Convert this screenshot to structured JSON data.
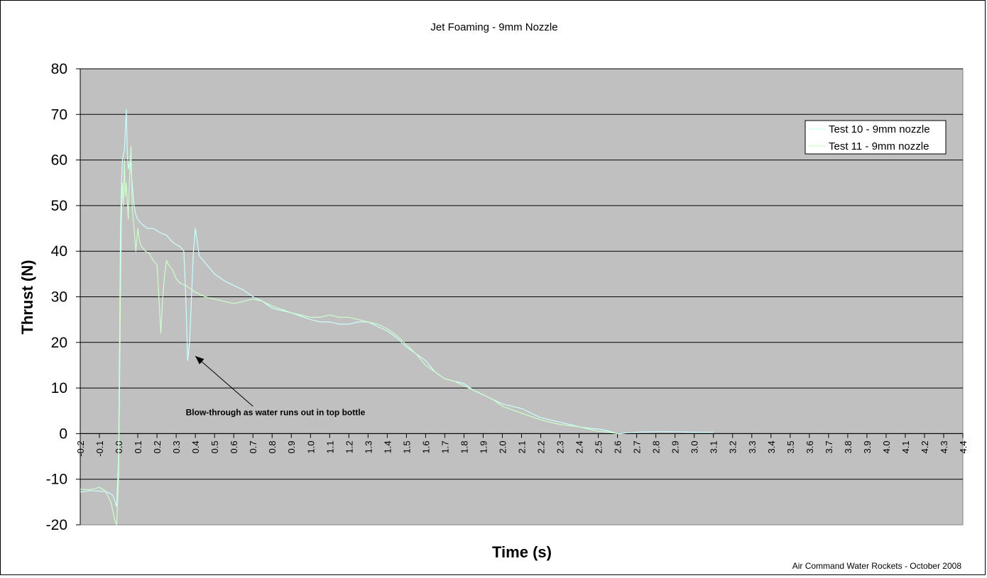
{
  "chart_data": {
    "type": "line",
    "title": "Jet Foaming - 9mm Nozzle",
    "xlabel": "Time (s)",
    "ylabel": "Thrust (N)",
    "xlim": [
      -0.2,
      4.4
    ],
    "ylim": [
      -20,
      80
    ],
    "x_tick_step": 0.1,
    "y_tick_step": 10,
    "y_ticks": [
      -20,
      -10,
      0,
      10,
      20,
      30,
      40,
      50,
      60,
      70,
      80
    ],
    "x_tick_labels": [
      "-0.2",
      "-0.1",
      "0.0",
      "0.1",
      "0.2",
      "0.3",
      "0.4",
      "0.5",
      "0.6",
      "0.7",
      "0.8",
      "0.9",
      "1.0",
      "1.1",
      "1.2",
      "1.3",
      "1.4",
      "1.5",
      "1.6",
      "1.7",
      "1.8",
      "1.9",
      "2.0",
      "2.1",
      "2.2",
      "2.3",
      "2.4",
      "2.5",
      "2.6",
      "2.7",
      "2.8",
      "2.9",
      "3.0",
      "3.1",
      "3.2",
      "3.3",
      "3.4",
      "3.5",
      "3.6",
      "3.7",
      "3.8",
      "3.9",
      "4.0",
      "4.1",
      "4.2",
      "4.3",
      "4.4"
    ],
    "grid": "horizontal",
    "plot_background": "#c0c0c0",
    "legend_position": "top-right",
    "series": [
      {
        "name": "Test 10 - 9mm nozzle",
        "color": "#ccffff",
        "x": [
          -0.2,
          -0.15,
          -0.1,
          -0.06,
          -0.03,
          -0.01,
          0.0,
          0.005,
          0.01,
          0.015,
          0.02,
          0.03,
          0.04,
          0.045,
          0.05,
          0.06,
          0.07,
          0.08,
          0.09,
          0.1,
          0.12,
          0.15,
          0.18,
          0.2,
          0.22,
          0.25,
          0.28,
          0.3,
          0.32,
          0.34,
          0.35,
          0.36,
          0.37,
          0.38,
          0.39,
          0.4,
          0.42,
          0.45,
          0.5,
          0.55,
          0.6,
          0.65,
          0.7,
          0.75,
          0.8,
          0.9,
          1.0,
          1.05,
          1.1,
          1.15,
          1.2,
          1.25,
          1.3,
          1.35,
          1.4,
          1.45,
          1.5,
          1.55,
          1.6,
          1.65,
          1.7,
          1.75,
          1.8,
          1.85,
          1.9,
          1.95,
          2.0,
          2.05,
          2.1,
          2.15,
          2.2,
          2.25,
          2.3,
          2.35,
          2.4,
          2.45,
          2.5,
          2.55,
          2.58,
          2.6,
          2.62,
          2.65,
          2.7,
          2.8,
          2.9,
          3.0,
          3.1
        ],
        "values": [
          -12.8,
          -12.5,
          -12.6,
          -12.8,
          -13.5,
          -16.0,
          -5.0,
          20.0,
          45.0,
          55.0,
          60.0,
          62.0,
          71.0,
          62.0,
          58.0,
          60.0,
          55.0,
          50.0,
          48.0,
          47.0,
          46.0,
          45.0,
          45.0,
          44.5,
          44.0,
          43.5,
          42.0,
          41.5,
          41.0,
          40.0,
          30.0,
          16.0,
          20.0,
          30.0,
          40.0,
          45.0,
          39.0,
          37.5,
          35.0,
          33.5,
          32.5,
          31.5,
          30.0,
          29.0,
          27.5,
          26.5,
          25.0,
          24.5,
          24.5,
          24.0,
          24.0,
          24.5,
          24.5,
          23.5,
          22.5,
          21.0,
          19.0,
          17.5,
          16.0,
          13.5,
          12.0,
          11.5,
          11.0,
          9.5,
          8.5,
          7.5,
          6.5,
          6.0,
          5.5,
          4.5,
          3.5,
          3.0,
          2.5,
          2.0,
          1.5,
          1.2,
          1.0,
          0.6,
          0.2,
          0.0,
          0.0,
          0.2,
          0.3,
          0.4,
          0.4,
          0.3,
          0.3
        ]
      },
      {
        "name": "Test 11 - 9mm nozzle",
        "color": "#ccffcc",
        "x": [
          -0.2,
          -0.15,
          -0.1,
          -0.07,
          -0.04,
          -0.02,
          -0.01,
          0.0,
          0.005,
          0.01,
          0.015,
          0.02,
          0.025,
          0.03,
          0.035,
          0.04,
          0.05,
          0.06,
          0.065,
          0.07,
          0.08,
          0.09,
          0.1,
          0.11,
          0.12,
          0.14,
          0.16,
          0.18,
          0.2,
          0.21,
          0.22,
          0.23,
          0.24,
          0.25,
          0.26,
          0.28,
          0.3,
          0.32,
          0.35,
          0.4,
          0.45,
          0.5,
          0.55,
          0.6,
          0.65,
          0.7,
          0.75,
          0.8,
          0.9,
          1.0,
          1.05,
          1.1,
          1.15,
          1.2,
          1.25,
          1.3,
          1.35,
          1.4,
          1.45,
          1.5,
          1.55,
          1.6,
          1.65,
          1.7,
          1.75,
          1.8,
          1.85,
          1.9,
          1.95,
          2.0,
          2.1,
          2.2,
          2.3,
          2.4,
          2.5,
          2.55,
          2.6
        ],
        "values": [
          -12.2,
          -12.3,
          -11.8,
          -12.5,
          -15.0,
          -19.0,
          -20.0,
          -10.0,
          10.0,
          30.0,
          48.0,
          55.0,
          50.0,
          60.0,
          52.0,
          55.0,
          47.0,
          60.0,
          63.0,
          50.0,
          45.0,
          40.0,
          45.0,
          42.0,
          41.0,
          40.0,
          39.5,
          38.0,
          37.0,
          30.0,
          22.0,
          30.0,
          35.0,
          38.0,
          37.0,
          36.0,
          34.0,
          33.0,
          32.5,
          31.0,
          30.0,
          29.5,
          29.0,
          28.5,
          29.0,
          29.5,
          29.0,
          28.0,
          26.5,
          25.5,
          25.5,
          26.0,
          25.5,
          25.5,
          25.0,
          24.5,
          24.0,
          23.0,
          21.5,
          19.5,
          17.5,
          15.0,
          13.5,
          12.0,
          11.5,
          10.5,
          9.5,
          8.5,
          7.5,
          6.0,
          4.5,
          3.0,
          2.0,
          1.5,
          0.5,
          0.3,
          0.0
        ]
      }
    ],
    "annotations": [
      {
        "text": "Blow-through as water runs out in top bottle",
        "arrow_to": [
          0.4,
          17
        ],
        "arrow_from": [
          0.7,
          6
        ],
        "text_anchor": [
          0.35,
          4
        ]
      }
    ],
    "credit": "Air Command Water Rockets - October 2008"
  }
}
